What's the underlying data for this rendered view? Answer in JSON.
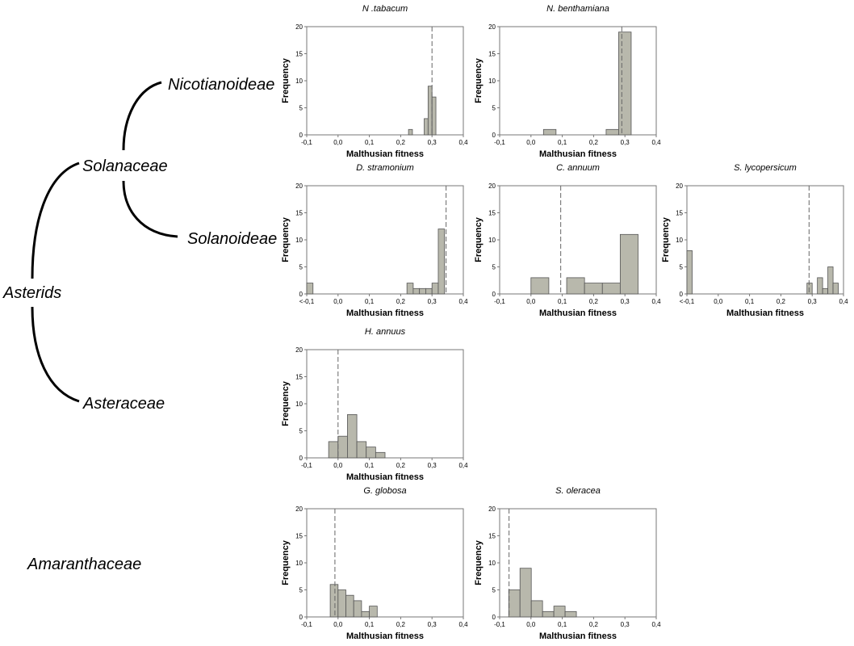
{
  "tree": {
    "root": "Asterids",
    "solanaceae": "Solanaceae",
    "nicotianoideae": "Nicotianoideae",
    "solanoideae": "Solanoideae",
    "asteraceae": "Asteraceae",
    "amaranthaceae": "Amaranthaceae"
  },
  "chart_data": [
    {
      "type": "bar",
      "title": "N .tabacum",
      "xlabel": "Malthusian fitness",
      "ylabel": "Frequency",
      "xlim": [
        -0.1,
        0.4
      ],
      "ylim": [
        0,
        20
      ],
      "xticks": [
        "-0,1",
        "0,0",
        "0,1",
        "0,2",
        "0,3",
        "0,4"
      ],
      "yticks": [
        "0",
        "5",
        "10",
        "15",
        "20"
      ],
      "bin_width": 0.0125,
      "bins": [
        [
          0.2375,
          1
        ],
        [
          0.2875,
          3
        ],
        [
          0.3,
          9
        ],
        [
          0.3125,
          7
        ]
      ],
      "reference_line": 0.3
    },
    {
      "type": "bar",
      "title": "N. benthamiana",
      "xlabel": "Malthusian fitness",
      "ylabel": "Frequency",
      "xlim": [
        -0.1,
        0.4
      ],
      "ylim": [
        0,
        20
      ],
      "xticks": [
        "-0,1",
        "0,0",
        "0,1",
        "0,2",
        "0,3",
        "0,4"
      ],
      "yticks": [
        "0",
        "5",
        "10",
        "15",
        "20"
      ],
      "bin_width": 0.04,
      "bins": [
        [
          0.08,
          1
        ],
        [
          0.28,
          1
        ],
        [
          0.32,
          19
        ]
      ],
      "reference_line": 0.29
    },
    {
      "type": "bar",
      "title": "D. stramonium",
      "xlabel": "Malthusian fitness",
      "ylabel": "Frequency",
      "xlim": [
        -0.1,
        0.4
      ],
      "ylim": [
        0,
        20
      ],
      "xticks": [
        "<-0,1",
        "0,0",
        "0,1",
        "0,2",
        "0,3",
        "0,4"
      ],
      "yticks": [
        "0",
        "5",
        "10",
        "15",
        "20"
      ],
      "bin_width": 0.02,
      "bins": [
        [
          -0.08,
          2
        ],
        [
          0.24,
          2
        ],
        [
          0.26,
          1
        ],
        [
          0.28,
          1
        ],
        [
          0.3,
          1
        ],
        [
          0.32,
          2
        ],
        [
          0.34,
          12
        ]
      ],
      "reference_line": 0.345
    },
    {
      "type": "bar",
      "title": "C. annuum",
      "xlabel": "Malthusian fitness",
      "ylabel": "Frequency",
      "xlim": [
        -0.1,
        0.4
      ],
      "ylim": [
        0,
        20
      ],
      "xticks": [
        "-0,1",
        "0,0",
        "0,1",
        "0,2",
        "0,3",
        "0,4"
      ],
      "yticks": [
        "0",
        "5",
        "10",
        "15",
        "20"
      ],
      "bin_width": 0.057,
      "bins": [
        [
          0.057,
          3
        ],
        [
          0.171,
          3
        ],
        [
          0.228,
          2
        ],
        [
          0.285,
          2
        ],
        [
          0.342,
          11
        ]
      ],
      "reference_line": 0.095
    },
    {
      "type": "bar",
      "title": "S. lycopersicum",
      "xlabel": "Malthusian fitness",
      "ylabel": "Frequency",
      "xlim": [
        -0.1,
        0.4
      ],
      "ylim": [
        0,
        20
      ],
      "xticks": [
        "<-0,1",
        "0,0",
        "0,1",
        "0,2",
        "0,3",
        "0,4"
      ],
      "yticks": [
        "0",
        "5",
        "10",
        "15",
        "20"
      ],
      "bin_width": 0.0167,
      "bins": [
        [
          -0.0833,
          8
        ],
        [
          0.3,
          2
        ],
        [
          0.3333,
          3
        ],
        [
          0.35,
          1
        ],
        [
          0.3667,
          5
        ],
        [
          0.3833,
          2
        ]
      ],
      "reference_line": 0.29
    },
    {
      "type": "bar",
      "title": "H. annuus",
      "xlabel": "Malthusian fitness",
      "ylabel": "Frequency",
      "xlim": [
        -0.1,
        0.4
      ],
      "ylim": [
        0,
        20
      ],
      "xticks": [
        "-0,1",
        "0,0",
        "0,1",
        "0,2",
        "0,3",
        "0,4"
      ],
      "yticks": [
        "0",
        "5",
        "10",
        "15",
        "20"
      ],
      "bin_width": 0.03,
      "bins": [
        [
          0.0,
          3
        ],
        [
          0.03,
          4
        ],
        [
          0.06,
          8
        ],
        [
          0.09,
          3
        ],
        [
          0.12,
          2
        ],
        [
          0.15,
          1
        ]
      ],
      "reference_line": 0.0
    },
    {
      "type": "bar",
      "title": "G. globosa",
      "xlabel": "Malthusian fitness",
      "ylabel": "Frequency",
      "xlim": [
        -0.1,
        0.4
      ],
      "ylim": [
        0,
        20
      ],
      "xticks": [
        "-0,1",
        "0,0",
        "0,1",
        "0,2",
        "0,3",
        "0,4"
      ],
      "yticks": [
        "0",
        "5",
        "10",
        "15",
        "20"
      ],
      "bin_width": 0.025,
      "bins": [
        [
          0.0,
          6
        ],
        [
          0.025,
          5
        ],
        [
          0.05,
          4
        ],
        [
          0.075,
          3
        ],
        [
          0.1,
          1
        ],
        [
          0.125,
          2
        ]
      ],
      "reference_line": -0.01
    },
    {
      "type": "bar",
      "title": "S. oleracea",
      "xlabel": "Malthusian fitness",
      "ylabel": "Frequency",
      "xlim": [
        -0.1,
        0.4
      ],
      "ylim": [
        0,
        20
      ],
      "xticks": [
        "-0,1",
        "0,0",
        "0,1",
        "0,2",
        "0,3",
        "0,4"
      ],
      "yticks": [
        "0",
        "5",
        "10",
        "15",
        "20"
      ],
      "bin_width": 0.036,
      "bins": [
        [
          -0.035,
          5
        ],
        [
          0.001,
          9
        ],
        [
          0.037,
          3
        ],
        [
          0.073,
          1
        ],
        [
          0.109,
          2
        ],
        [
          0.145,
          1
        ]
      ],
      "reference_line": -0.07
    }
  ],
  "colors": {
    "bar_fill": "#b8b8ac",
    "bar_stroke": "#555555",
    "axis": "#777777",
    "ref_line": "#666666"
  }
}
